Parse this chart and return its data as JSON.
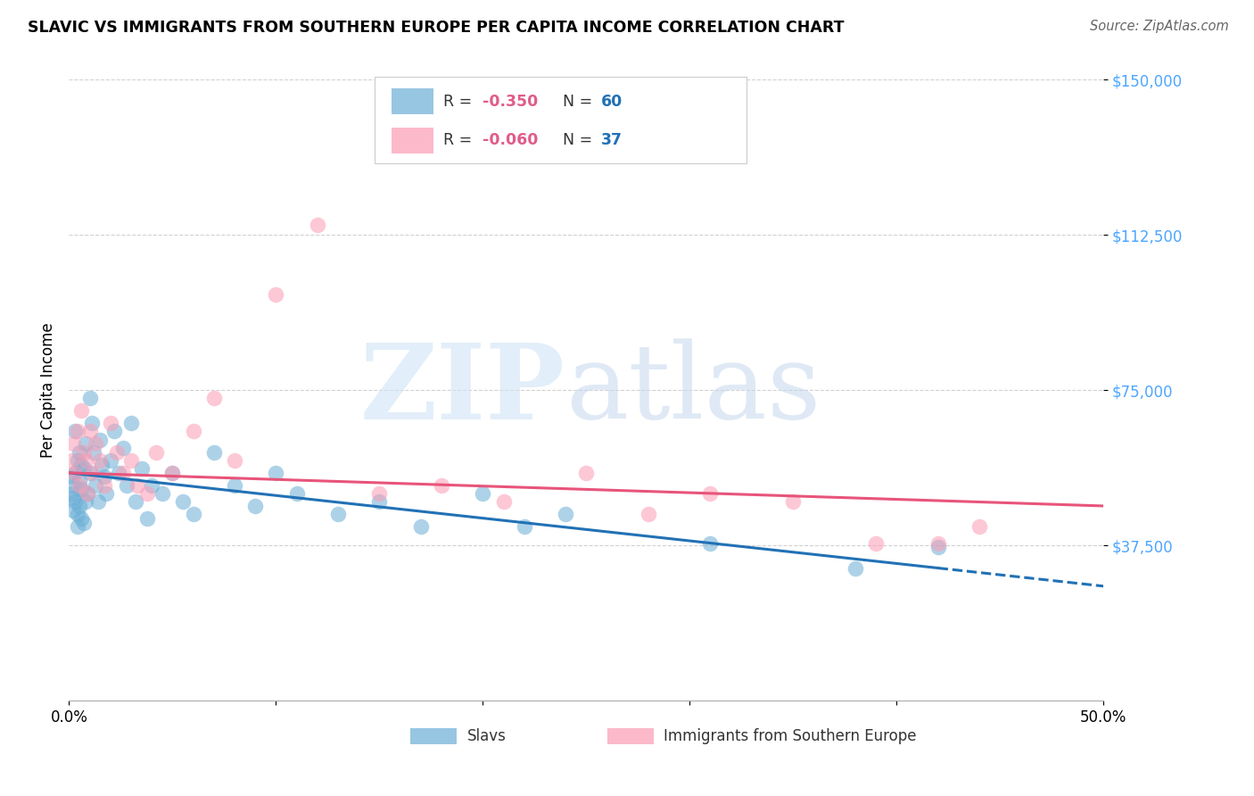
{
  "title": "SLAVIC VS IMMIGRANTS FROM SOUTHERN EUROPE PER CAPITA INCOME CORRELATION CHART",
  "source": "Source: ZipAtlas.com",
  "ylabel": "Per Capita Income",
  "xlim": [
    0.0,
    0.5
  ],
  "ylim": [
    0,
    150000
  ],
  "xtick_values": [
    0.0,
    0.1,
    0.2,
    0.3,
    0.4,
    0.5
  ],
  "xtick_labels": [
    "0.0%",
    "",
    "",
    "",
    "",
    "50.0%"
  ],
  "ytick_values": [
    37500,
    75000,
    112500,
    150000
  ],
  "ytick_labels": [
    "$37,500",
    "$75,000",
    "$112,500",
    "$150,000"
  ],
  "slavs_R": -0.35,
  "slavs_N": 60,
  "south_R": -0.06,
  "south_N": 37,
  "slavs_color": "#6baed6",
  "south_color": "#fc9cb4",
  "slavs_line_color": "#2171b5",
  "south_line_color": "#e8547a",
  "ytick_color": "#4da6ff",
  "slavs_x": [
    0.001,
    0.001,
    0.002,
    0.002,
    0.002,
    0.003,
    0.003,
    0.003,
    0.004,
    0.004,
    0.004,
    0.005,
    0.005,
    0.005,
    0.006,
    0.006,
    0.006,
    0.007,
    0.007,
    0.008,
    0.008,
    0.009,
    0.01,
    0.01,
    0.011,
    0.012,
    0.013,
    0.014,
    0.015,
    0.016,
    0.017,
    0.018,
    0.02,
    0.022,
    0.024,
    0.026,
    0.028,
    0.03,
    0.032,
    0.035,
    0.038,
    0.04,
    0.045,
    0.05,
    0.055,
    0.06,
    0.07,
    0.08,
    0.09,
    0.1,
    0.11,
    0.13,
    0.15,
    0.17,
    0.2,
    0.22,
    0.24,
    0.31,
    0.38,
    0.42
  ],
  "slavs_y": [
    54000,
    50000,
    52000,
    46000,
    49000,
    65000,
    55000,
    48000,
    58000,
    45000,
    42000,
    60000,
    53000,
    47000,
    57000,
    51000,
    44000,
    56000,
    43000,
    62000,
    48000,
    50000,
    73000,
    55000,
    67000,
    60000,
    52000,
    48000,
    63000,
    57000,
    54000,
    50000,
    58000,
    65000,
    55000,
    61000,
    52000,
    67000,
    48000,
    56000,
    44000,
    52000,
    50000,
    55000,
    48000,
    45000,
    60000,
    52000,
    47000,
    55000,
    50000,
    45000,
    48000,
    42000,
    50000,
    42000,
    45000,
    38000,
    32000,
    37000
  ],
  "south_x": [
    0.001,
    0.002,
    0.003,
    0.004,
    0.005,
    0.006,
    0.007,
    0.008,
    0.009,
    0.01,
    0.011,
    0.013,
    0.015,
    0.017,
    0.02,
    0.023,
    0.026,
    0.03,
    0.033,
    0.038,
    0.042,
    0.05,
    0.06,
    0.07,
    0.08,
    0.1,
    0.12,
    0.15,
    0.18,
    0.21,
    0.25,
    0.28,
    0.31,
    0.35,
    0.39,
    0.42,
    0.44
  ],
  "south_y": [
    58000,
    62000,
    55000,
    65000,
    52000,
    70000,
    60000,
    58000,
    50000,
    65000,
    55000,
    62000,
    58000,
    52000,
    67000,
    60000,
    55000,
    58000,
    52000,
    50000,
    60000,
    55000,
    65000,
    73000,
    58000,
    98000,
    115000,
    50000,
    52000,
    48000,
    55000,
    45000,
    50000,
    48000,
    38000,
    38000,
    42000
  ]
}
